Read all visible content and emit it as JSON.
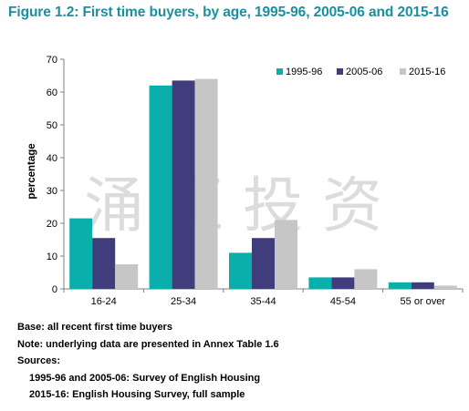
{
  "figure": {
    "title": "Figure 1.2: First time buyers, by age, 1995-96, 2005-06 and 2015-16"
  },
  "chart_data": {
    "type": "bar",
    "title": "Figure 1.2: First time buyers, by age, 1995-96, 2005-06 and 2015-16",
    "xlabel": "",
    "ylabel": "percentage",
    "ylim": [
      0,
      70
    ],
    "yticks": [
      0,
      10,
      20,
      30,
      40,
      50,
      60,
      70
    ],
    "categories": [
      "16-24",
      "25-34",
      "35-44",
      "45-54",
      "55 or over"
    ],
    "series": [
      {
        "name": "1995-96",
        "color": "#0aaeaa",
        "values": [
          21.5,
          62,
          11,
          3.5,
          2
        ]
      },
      {
        "name": "2005-06",
        "color": "#3f3d7c",
        "values": [
          15.5,
          63.5,
          15.5,
          3.5,
          2
        ]
      },
      {
        "name": "2015-16",
        "color": "#c6c6c6",
        "values": [
          7.5,
          64,
          21,
          6,
          1
        ]
      }
    ],
    "grid": false,
    "legend": "top-right"
  },
  "watermark": {
    "text": "涌 匡 投 资"
  },
  "notes": {
    "base": "Base: all recent first time buyers",
    "note": "Note: underlying data are presented in Annex Table 1.6",
    "sources_label": "Sources:",
    "source_1": "1995-96 and 2005-06: Survey of English Housing",
    "source_2": "2015-16: English Housing Survey, full sample"
  },
  "colors": {
    "title": "#1a8fa0",
    "axis": "#7f7f7f",
    "watermark": "#dcdcdc"
  }
}
